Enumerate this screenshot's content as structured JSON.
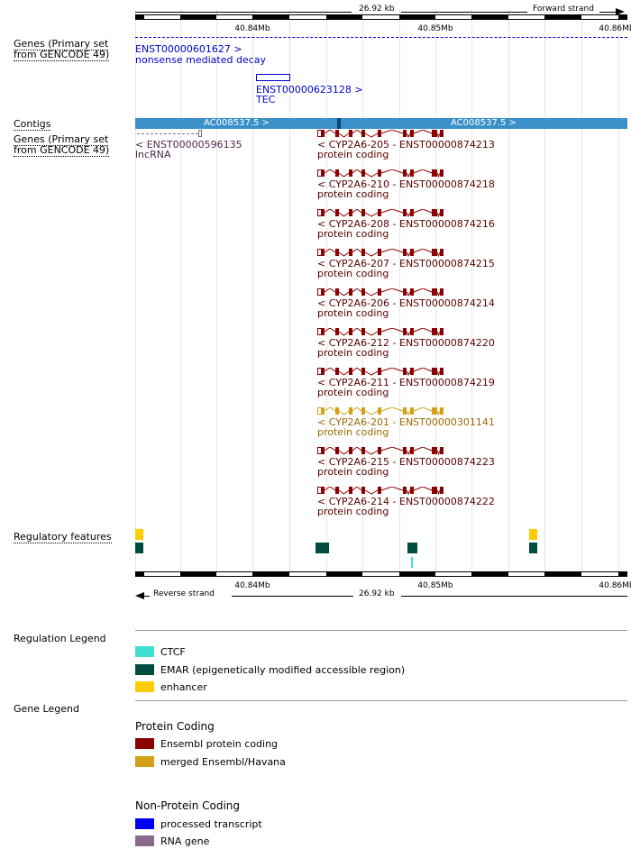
{
  "colors": {
    "protein_coding": "#8b0000",
    "merged": "#d4a017",
    "processed_transcript": "#0000ff",
    "rna_gene": "#8a6a8a",
    "lncrna_text": "#4b2a4b",
    "contig": "#3a90c8",
    "ctcf": "#40e0d0",
    "emar": "#004d40",
    "enhancer": "#ffcc00",
    "blue_text": "#0000cc"
  },
  "ruler": {
    "top_span": "26.92 kb",
    "top_strand": "Forward strand",
    "bottom_span": "26.92 kb",
    "bottom_strand": "Reverse strand",
    "ticks": [
      "40.84Mb",
      "40.85Mb",
      "40.86Mb"
    ]
  },
  "tracks": {
    "genes_fwd": "Genes (Primary set from GENCODE 49)",
    "contigs": "Contigs",
    "genes_rev": "Genes (Primary set from GENCODE 49)",
    "regulatory": "Regulatory features"
  },
  "fwd_transcripts": [
    {
      "id": "ENST00000601627 >",
      "biotype": "nonsense mediated decay"
    },
    {
      "id": "ENST00000623128 >",
      "biotype": "TEC"
    }
  ],
  "contigs": [
    {
      "label": "AC008537.5 >"
    },
    {
      "label": "AC008537.5 >"
    }
  ],
  "lncrna": {
    "id": "< ENST00000596135",
    "biotype": "lncRNA"
  },
  "rev_transcripts": [
    {
      "name": "< CYP2A6-205 - ENST00000874213",
      "biotype": "protein coding",
      "kind": "protein_coding"
    },
    {
      "name": "< CYP2A6-210 - ENST00000874218",
      "biotype": "protein coding",
      "kind": "protein_coding"
    },
    {
      "name": "< CYP2A6-208 - ENST00000874216",
      "biotype": "protein coding",
      "kind": "protein_coding"
    },
    {
      "name": "< CYP2A6-207 - ENST00000874215",
      "biotype": "protein coding",
      "kind": "protein_coding"
    },
    {
      "name": "< CYP2A6-206 - ENST00000874214",
      "biotype": "protein coding",
      "kind": "protein_coding"
    },
    {
      "name": "< CYP2A6-212 - ENST00000874220",
      "biotype": "protein coding",
      "kind": "protein_coding"
    },
    {
      "name": "< CYP2A6-211 - ENST00000874219",
      "biotype": "protein coding",
      "kind": "protein_coding"
    },
    {
      "name": "< CYP2A6-201 - ENST00000301141",
      "biotype": "protein coding",
      "kind": "merged"
    },
    {
      "name": "< CYP2A6-215 - ENST00000874223",
      "biotype": "protein coding",
      "kind": "protein_coding"
    },
    {
      "name": "< CYP2A6-214 - ENST00000874222",
      "biotype": "protein coding",
      "kind": "protein_coding"
    }
  ],
  "regulation_legend": {
    "title": "Regulation Legend",
    "items": [
      {
        "label": "CTCF"
      },
      {
        "label": "EMAR (epigenetically modified accessible region)"
      },
      {
        "label": "enhancer"
      }
    ]
  },
  "gene_legend": {
    "title": "Gene Legend",
    "protein_heading": "Protein Coding",
    "protein_items": [
      {
        "label": "Ensembl protein coding"
      },
      {
        "label": "merged Ensembl/Havana"
      }
    ],
    "nonprotein_heading": "Non-Protein Coding",
    "nonprotein_items": [
      {
        "label": "processed transcript"
      },
      {
        "label": "RNA gene"
      }
    ]
  }
}
